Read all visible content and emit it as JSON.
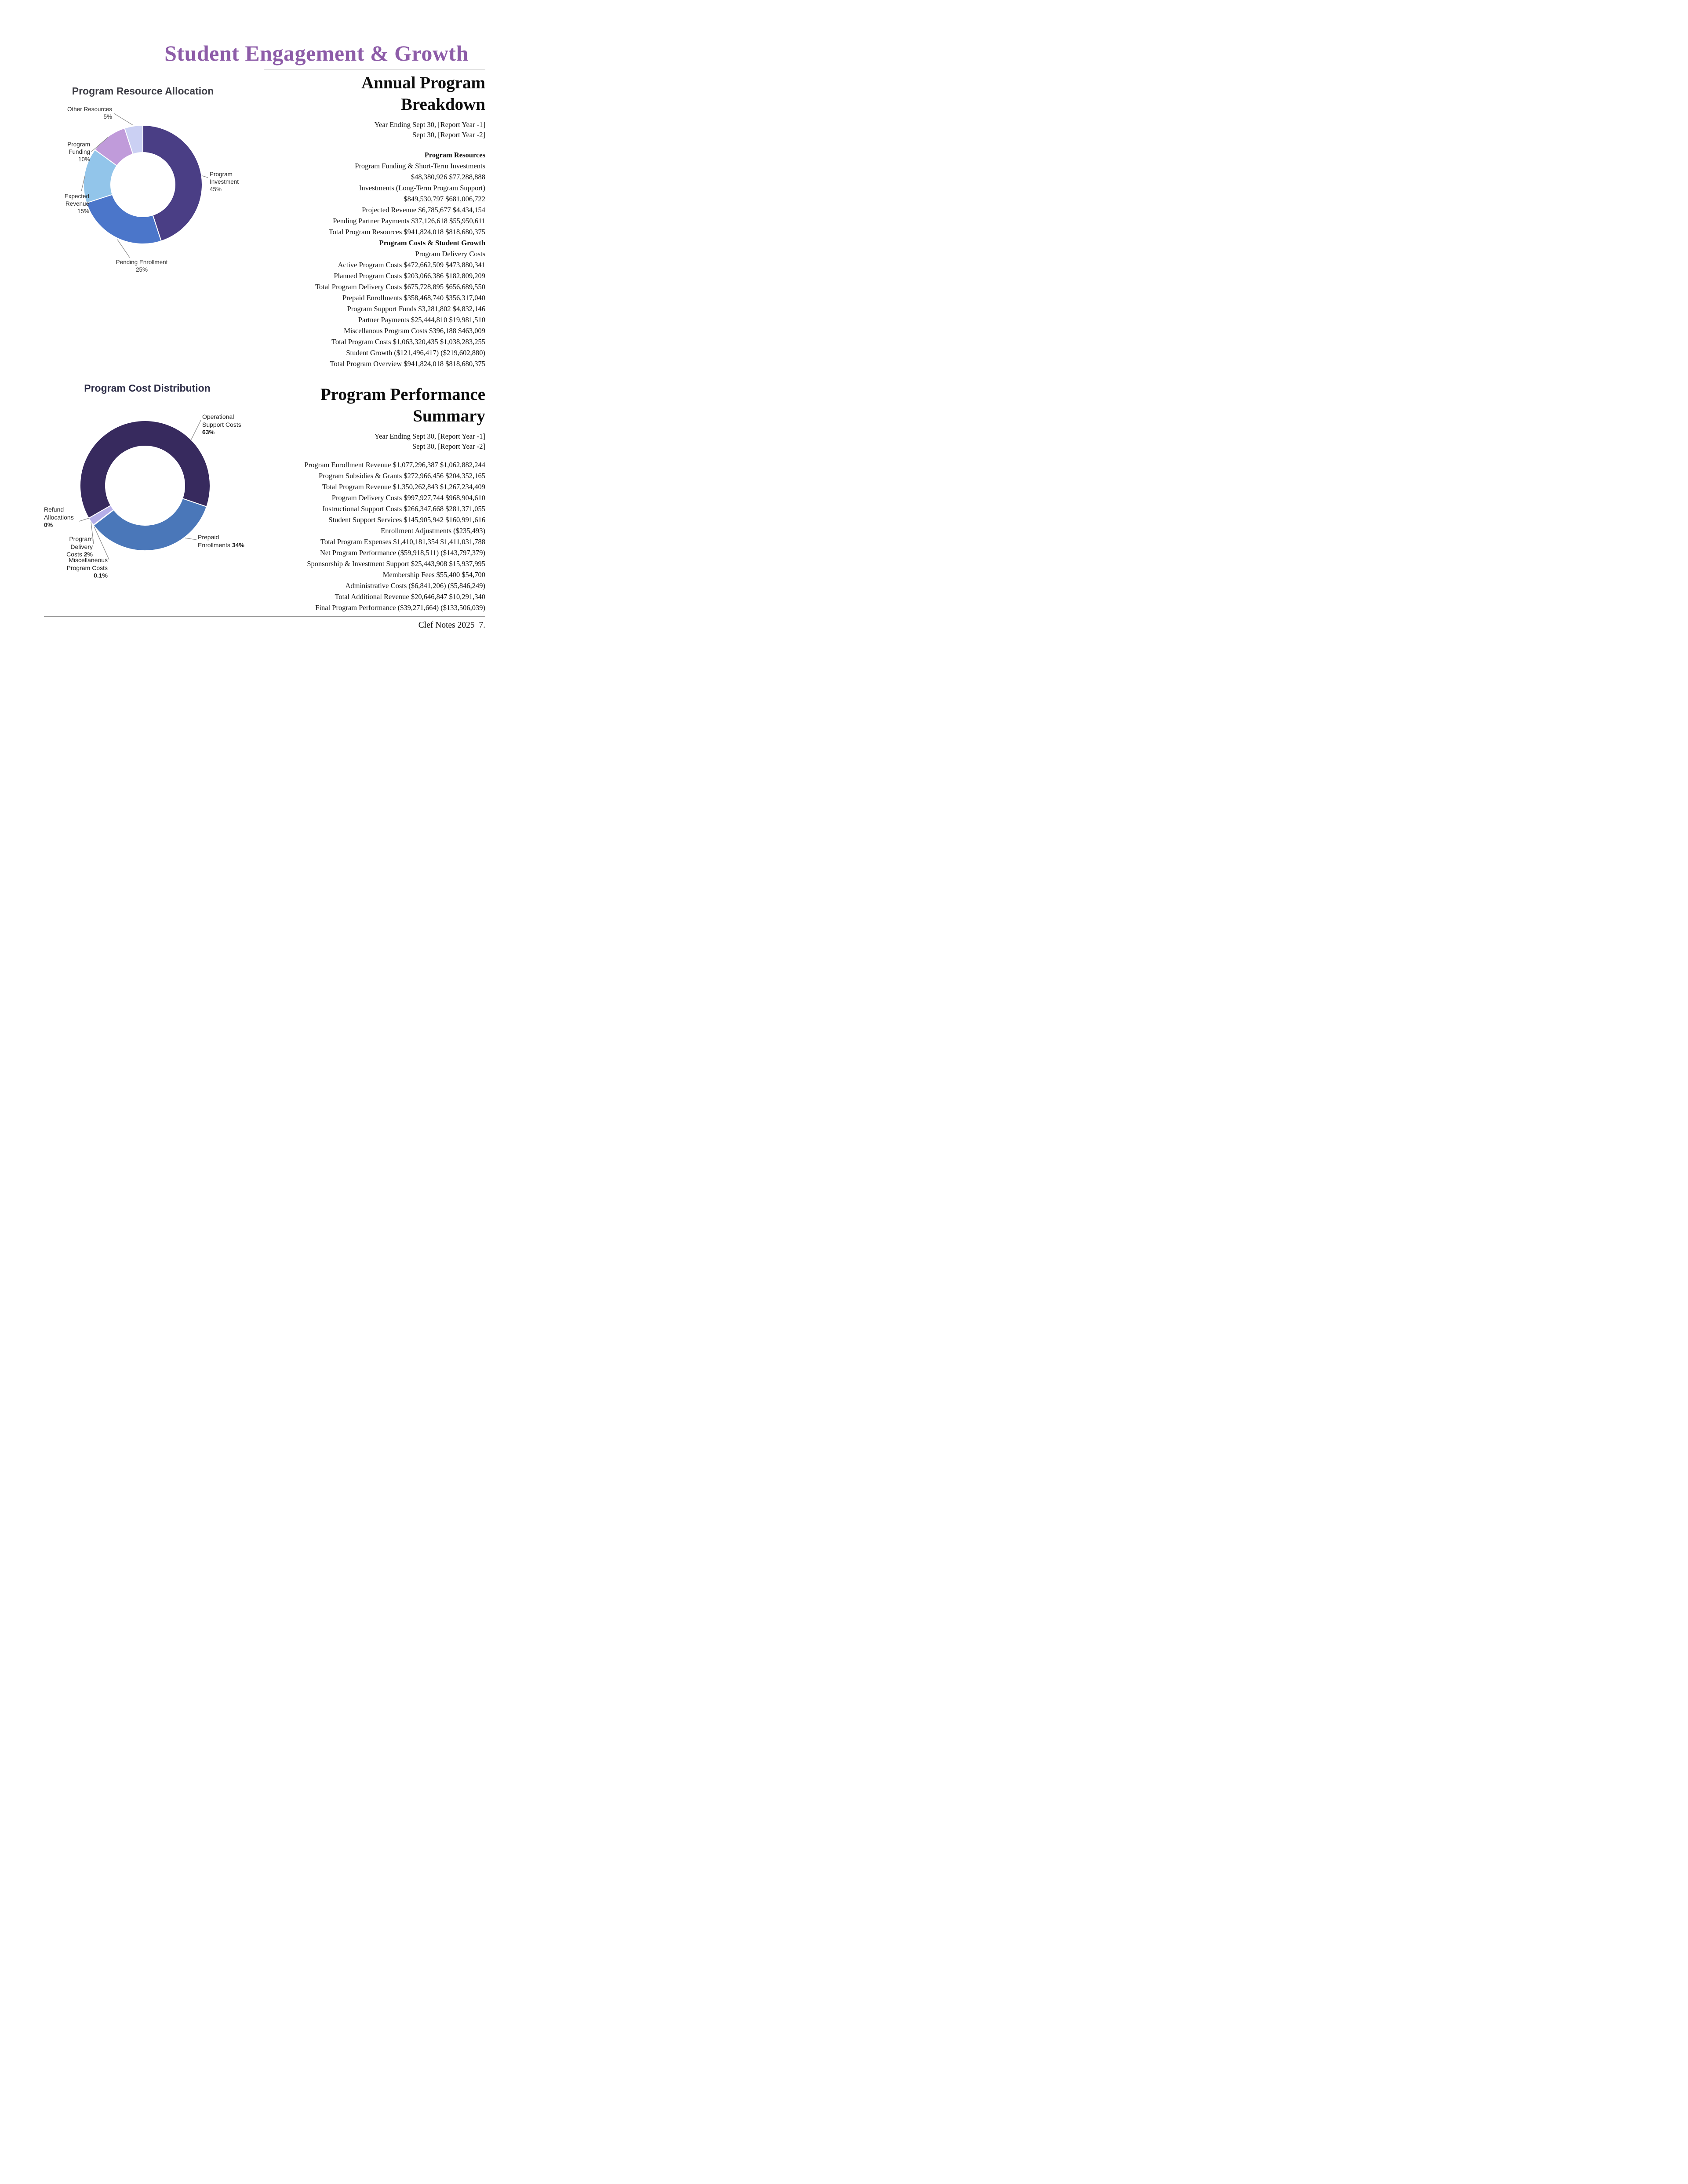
{
  "page": {
    "title": "Student Engagement & Growth",
    "footer": "Clef Notes 2025  7."
  },
  "chart_data": [
    {
      "type": "pie",
      "title": "Program Resource Allocation",
      "unit": "percent",
      "legend_position": "outside-labels",
      "slices": [
        {
          "label": "Program Investment",
          "value": 45,
          "pct": "45%",
          "color": "#4a3e85",
          "label_lines": [
            "Program",
            "Investment",
            "45%"
          ]
        },
        {
          "label": "Pending Enrollment",
          "value": 25,
          "pct": "25%",
          "color": "#4b76ca",
          "label_lines": [
            "Pending Enrollment",
            "25%"
          ]
        },
        {
          "label": "Expected Revenue",
          "value": 15,
          "pct": "15%",
          "color": "#92c5ea",
          "label_lines": [
            "Expected",
            "Revenue",
            "15%"
          ]
        },
        {
          "label": "Program Funding",
          "value": 10,
          "pct": "10%",
          "color": "#c09bda",
          "label_lines": [
            "Program",
            "Funding",
            "10%"
          ]
        },
        {
          "label": "Other Resources",
          "value": 5,
          "pct": "5%",
          "color": "#cbd0f3",
          "label_lines": [
            "Other Resources",
            "5%"
          ]
        }
      ]
    },
    {
      "type": "pie",
      "title": "Program Cost Distribution",
      "unit": "percent",
      "legend_position": "outside-labels",
      "slices": [
        {
          "label": "Operational Support Costs",
          "value": 63,
          "pct": "63%",
          "color": "#372a5e",
          "label_lines": [
            "Operational",
            "Support Costs"
          ]
        },
        {
          "label": "Prepaid Enrollments",
          "value": 34,
          "pct": "34%",
          "color": "#4a77b9",
          "label_lines": [
            "Prepaid",
            "Enrollments"
          ]
        },
        {
          "label": "Miscellaneous Program Costs",
          "value": 0.1,
          "pct": "0.1%",
          "color": "#9c93db",
          "label_lines": [
            "Miscellaneous",
            "Program Costs"
          ]
        },
        {
          "label": "Program Delivery Costs",
          "value": 2,
          "pct": "2%",
          "color": "#b5aee8",
          "label_lines": [
            "Program Delivery",
            "Costs"
          ]
        },
        {
          "label": "Refund Allocations",
          "value": 0,
          "pct": "0%",
          "color": "#d5d2f1",
          "label_lines": [
            "Refund",
            "Allocations"
          ]
        }
      ]
    }
  ],
  "sections": [
    {
      "heading_lines": [
        "Annual Program",
        "Breakdown"
      ],
      "years": [
        "Year Ending Sept 30, [Report Year -1]",
        "Sept 30, [Report Year -2]"
      ],
      "lines": [
        {
          "t": "Program Resources",
          "cls": "bold gap"
        },
        {
          "t": "Program Funding & Short-Term Investments"
        },
        {
          "t": "$48,380,926 $77,288,888"
        },
        {
          "t": "Investments (Long-Term Program Support)"
        },
        {
          "t": "$849,530,797 $681,006,722"
        },
        {
          "t": "Projected Revenue $6,785,677 $4,434,154"
        },
        {
          "t": "Pending Partner Payments $37,126,618 $55,950,611"
        },
        {
          "t": "Total Program Resources $941,824,018 $818,680,375"
        },
        {
          "t": "Program Costs & Student Growth",
          "cls": "bold"
        },
        {
          "t": "Program Delivery Costs"
        },
        {
          "t": "Active Program Costs $472,662,509 $473,880,341"
        },
        {
          "t": "Planned Program Costs $203,066,386 $182,809,209"
        },
        {
          "t": "Total Program Delivery Costs $675,728,895 $656,689,550"
        },
        {
          "t": "Prepaid Enrollments $358,468,740 $356,317,040"
        },
        {
          "t": "Program Support Funds $3,281,802 $4,832,146"
        },
        {
          "t": "Partner Payments $25,444,810 $19,981,510"
        },
        {
          "t": "Miscellanous Program Costs $396,188 $463,009"
        },
        {
          "t": "Total Program Costs $1,063,320,435 $1,038,283,255"
        },
        {
          "t": "Student Growth ($121,496,417) ($219,602,880)"
        },
        {
          "t": "Total Program Overview $941,824,018 $818,680,375"
        }
      ]
    },
    {
      "heading_lines": [
        "Program Performance",
        "Summary"
      ],
      "years": [
        "Year Ending Sept 30, [Report Year -1]",
        "Sept 30, [Report Year -2]"
      ],
      "lines": [
        {
          "t": "Program Enrollment Revenue $1,077,296,387 $1,062,882,244",
          "cls": "gap-sm"
        },
        {
          "t": "Program Subsidies & Grants $272,966,456 $204,352,165"
        },
        {
          "t": "Total Program Revenue $1,350,262,843 $1,267,234,409"
        },
        {
          "t": "Program Delivery Costs $997,927,744 $968,904,610"
        },
        {
          "t": "Instructional Support Costs $266,347,668 $281,371,055"
        },
        {
          "t": "Student Support Services $145,905,942 $160,991,616"
        },
        {
          "t": "Enrollment Adjustments ($235,493)"
        },
        {
          "t": "Total Program Expenses $1,410,181,354 $1,411,031,788"
        },
        {
          "t": "Net Program Performance ($59,918,511) ($143,797,379)"
        },
        {
          "t": "Sponsorship & Investment Support $25,443,908 $15,937,995"
        },
        {
          "t": "Membership Fees $55,400 $54,700"
        },
        {
          "t": "Administrative Costs ($6,841,206) ($5,846,249)"
        },
        {
          "t": "Total Additional Revenue $20,646,847 $10,291,340"
        },
        {
          "t": "Final Program Performance ($39,271,664) ($133,506,039)"
        }
      ]
    }
  ]
}
